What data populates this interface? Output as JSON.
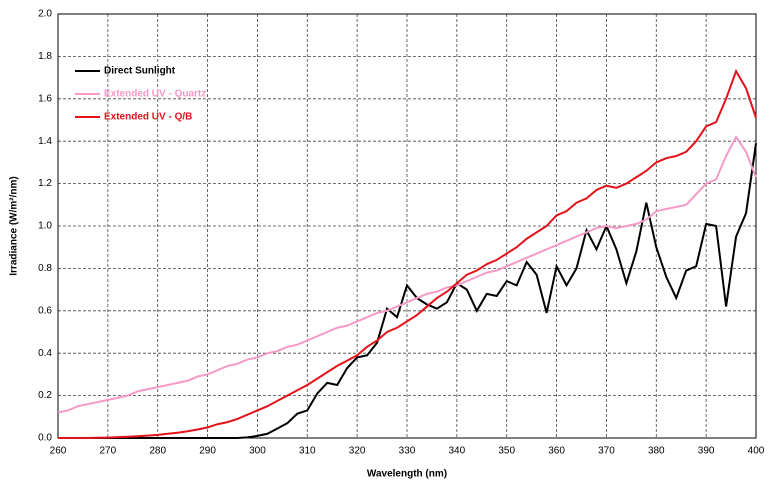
{
  "chart_data": {
    "type": "line",
    "x_label": "Wavelength (nm)",
    "y_label": "Irradiance (W/m²/nm)",
    "x": [
      260,
      262,
      264,
      266,
      268,
      270,
      272,
      274,
      276,
      278,
      280,
      282,
      284,
      286,
      288,
      290,
      292,
      294,
      296,
      298,
      300,
      302,
      304,
      306,
      308,
      310,
      312,
      314,
      316,
      318,
      320,
      322,
      324,
      326,
      328,
      330,
      332,
      334,
      336,
      338,
      340,
      342,
      344,
      346,
      348,
      350,
      352,
      354,
      356,
      358,
      360,
      362,
      364,
      366,
      368,
      370,
      372,
      374,
      376,
      378,
      380,
      382,
      384,
      386,
      388,
      390,
      392,
      394,
      396,
      398,
      400
    ],
    "series": [
      {
        "name": "Direct Sunlight",
        "color": "#000000",
        "values": [
          0,
          0,
          0,
          0,
          0,
          0,
          0,
          0,
          0,
          0,
          0,
          0,
          0,
          0,
          0,
          0,
          0,
          0,
          0,
          0.003,
          0.01,
          0.02,
          0.045,
          0.07,
          0.115,
          0.13,
          0.21,
          0.26,
          0.25,
          0.33,
          0.38,
          0.39,
          0.45,
          0.61,
          0.57,
          0.72,
          0.66,
          0.63,
          0.61,
          0.64,
          0.73,
          0.7,
          0.6,
          0.68,
          0.67,
          0.74,
          0.72,
          0.83,
          0.77,
          0.59,
          0.81,
          0.72,
          0.8,
          0.98,
          0.89,
          1.0,
          0.89,
          0.73,
          0.88,
          1.11,
          0.9,
          0.76,
          0.66,
          0.79,
          0.81,
          1.01,
          1.0,
          0.62,
          0.95,
          1.06,
          1.39
        ]
      },
      {
        "name": "Extended UV - Quartz",
        "color": "#f59ac8",
        "values": [
          0.12,
          0.13,
          0.15,
          0.16,
          0.17,
          0.18,
          0.19,
          0.2,
          0.22,
          0.23,
          0.24,
          0.25,
          0.26,
          0.27,
          0.29,
          0.3,
          0.32,
          0.34,
          0.35,
          0.37,
          0.38,
          0.4,
          0.41,
          0.43,
          0.44,
          0.46,
          0.48,
          0.5,
          0.52,
          0.53,
          0.55,
          0.57,
          0.59,
          0.6,
          0.62,
          0.64,
          0.66,
          0.68,
          0.69,
          0.71,
          0.72,
          0.74,
          0.76,
          0.78,
          0.79,
          0.81,
          0.83,
          0.85,
          0.87,
          0.89,
          0.91,
          0.93,
          0.95,
          0.97,
          0.99,
          1.0,
          0.99,
          1.0,
          1.01,
          1.03,
          1.07,
          1.08,
          1.09,
          1.1,
          1.15,
          1.2,
          1.22,
          1.33,
          1.42,
          1.35,
          1.23
        ]
      },
      {
        "name": "Extended UV - Q/B",
        "color": "#e3121b",
        "values": [
          0,
          0,
          0,
          0,
          0.001,
          0.002,
          0.004,
          0.006,
          0.008,
          0.011,
          0.015,
          0.02,
          0.025,
          0.032,
          0.04,
          0.05,
          0.065,
          0.075,
          0.09,
          0.11,
          0.13,
          0.15,
          0.175,
          0.2,
          0.225,
          0.25,
          0.28,
          0.31,
          0.34,
          0.365,
          0.39,
          0.43,
          0.46,
          0.5,
          0.52,
          0.55,
          0.58,
          0.62,
          0.66,
          0.69,
          0.73,
          0.77,
          0.79,
          0.82,
          0.84,
          0.87,
          0.9,
          0.94,
          0.97,
          1.0,
          1.05,
          1.07,
          1.11,
          1.13,
          1.17,
          1.19,
          1.18,
          1.2,
          1.23,
          1.26,
          1.3,
          1.32,
          1.33,
          1.35,
          1.4,
          1.47,
          1.49,
          1.6,
          1.73,
          1.65,
          1.51
        ]
      }
    ],
    "xlim": [
      260,
      400
    ],
    "xticks": [
      260,
      270,
      280,
      290,
      300,
      310,
      320,
      330,
      340,
      350,
      360,
      370,
      380,
      390,
      400
    ],
    "ylim": [
      0,
      2
    ],
    "yticks": [
      {
        "value": 0,
        "label": "0.0"
      },
      0.2,
      0.4,
      0.6,
      0.8,
      {
        "value": 1,
        "label": "1.0"
      },
      1.2,
      1.4,
      1.6,
      1.8,
      {
        "value": 2,
        "label": "2.0"
      }
    ],
    "grid": true,
    "legend": "upper left"
  }
}
